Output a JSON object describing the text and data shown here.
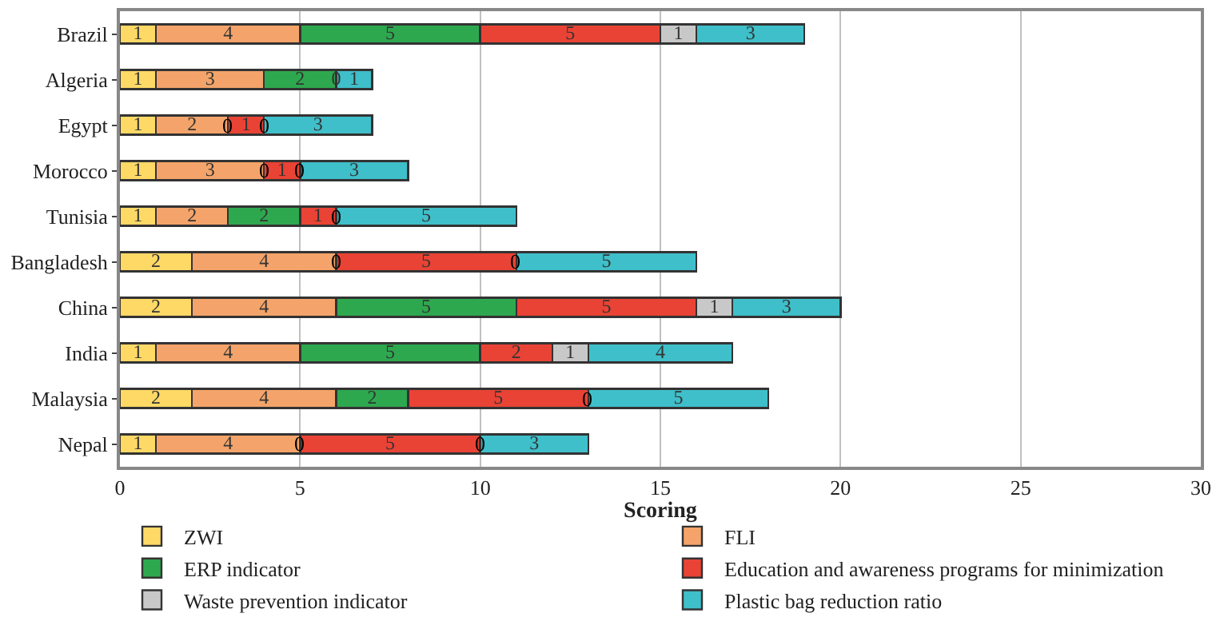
{
  "chart_data": {
    "type": "bar",
    "orientation": "horizontal",
    "stacked": true,
    "xlabel": "Scoring",
    "categories": [
      "Brazil",
      "Algeria",
      "Egypt",
      "Morocco",
      "Tunisia",
      "Bangladesh",
      "China",
      "India",
      "Malaysia",
      "Nepal"
    ],
    "series": [
      {
        "name": "ZWI",
        "color": "#ffd966",
        "values": [
          1,
          1,
          1,
          1,
          1,
          2,
          2,
          1,
          2,
          1
        ],
        "value_labels": [
          "1",
          "1",
          "1",
          "1",
          "1",
          "2",
          "2",
          "1",
          "2",
          "1"
        ]
      },
      {
        "name": "FLI",
        "color": "#f4a46a",
        "values": [
          4,
          3,
          2,
          3,
          2,
          4,
          4,
          4,
          4,
          4
        ],
        "value_labels": [
          "4",
          "3",
          "2",
          "3",
          "2",
          "4",
          "4",
          "4",
          "4",
          "4"
        ]
      },
      {
        "name": "ERP indicator",
        "color": "#2ea84f",
        "values": [
          5,
          2,
          0,
          0,
          2,
          0,
          5,
          5,
          2,
          0
        ],
        "value_labels": [
          "5",
          "2",
          null,
          null,
          "2",
          null,
          "5",
          "5",
          "2",
          null
        ]
      },
      {
        "name": "Education and awareness programs for minimization",
        "color": "#e94335",
        "values": [
          5,
          0,
          1,
          1,
          1,
          5,
          5,
          2,
          5,
          5
        ],
        "value_labels": [
          "5",
          "0",
          "1",
          "1",
          "1",
          "5",
          "5",
          "2",
          "5",
          "5"
        ]
      },
      {
        "name": "Waste prevention indicator",
        "color": "#c8c8c8",
        "values": [
          1,
          0,
          0,
          0,
          0,
          0,
          1,
          1,
          0,
          0
        ],
        "value_labels": [
          "1",
          null,
          null,
          null,
          null,
          null,
          "1",
          "1",
          null,
          null
        ]
      },
      {
        "name": "Plastic bag reduction ratio",
        "color": "#3fbfc9",
        "values": [
          3,
          1,
          3,
          3,
          5,
          5,
          3,
          4,
          5,
          3
        ],
        "value_labels": [
          "3",
          "1",
          "3",
          "3",
          "5",
          "5",
          "3",
          "4",
          "5",
          "3"
        ]
      }
    ],
    "annotations": [
      {
        "text": "0",
        "x": 3,
        "y": "Egypt"
      },
      {
        "text": "0",
        "x": 4,
        "y": "Egypt"
      },
      {
        "text": "0",
        "x": 4,
        "y": "Morocco"
      },
      {
        "text": "0",
        "x": 5,
        "y": "Morocco"
      },
      {
        "text": "0",
        "x": 6,
        "y": "Tunisia"
      },
      {
        "text": "0",
        "x": 6,
        "y": "Bangladesh"
      },
      {
        "text": "0",
        "x": 11,
        "y": "Bangladesh"
      },
      {
        "text": "0",
        "x": 13,
        "y": "Malaysia"
      },
      {
        "text": "0",
        "x": 5,
        "y": "Nepal"
      },
      {
        "text": "0",
        "x": 10,
        "y": "Nepal"
      }
    ],
    "xlim": [
      0,
      30
    ],
    "xticks": [
      0,
      5,
      10,
      15,
      20,
      25,
      30
    ],
    "grid": "x",
    "legend": "bottom"
  }
}
